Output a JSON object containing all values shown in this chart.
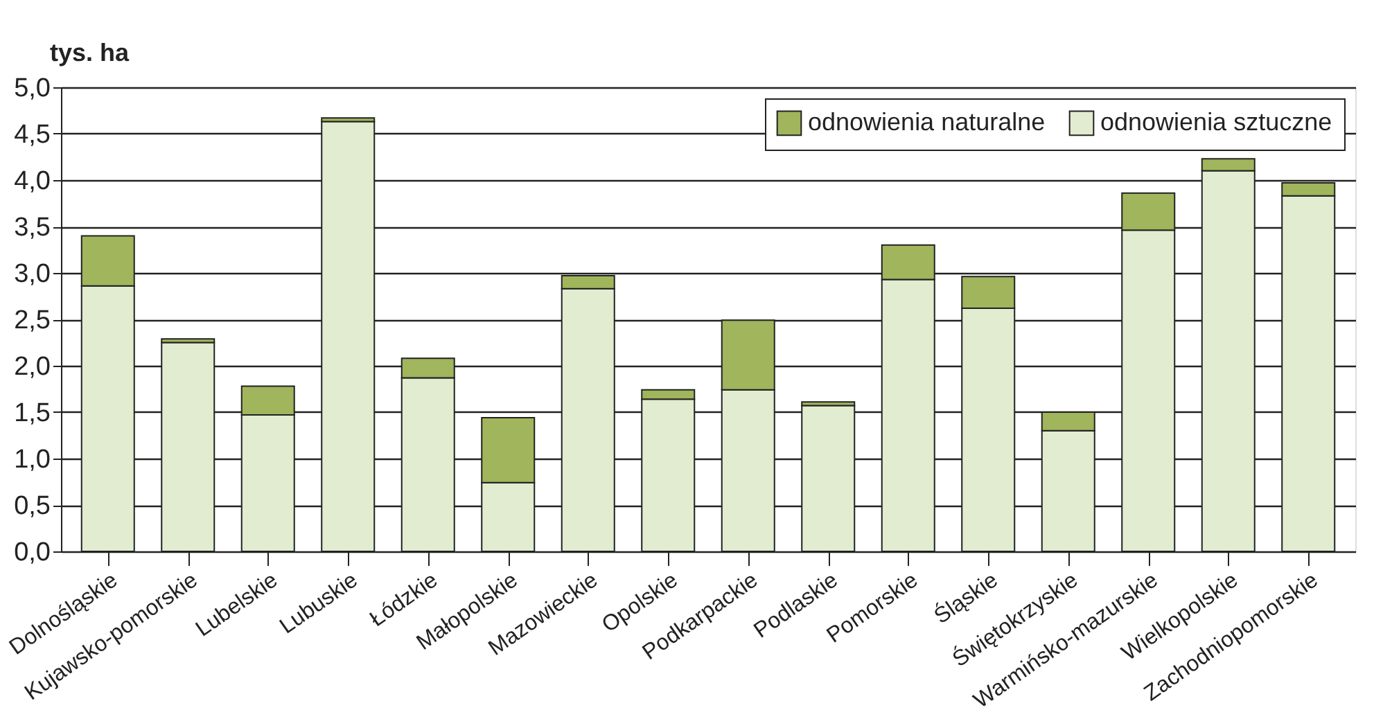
{
  "chart_data": {
    "type": "bar",
    "stacked": true,
    "ylabel": "tys. ha",
    "categories": [
      "Dolnośląskie",
      "Kujawsko-pomorskie",
      "Lubelskie",
      "Lubuskie",
      "Łódzkie",
      "Małopolskie",
      "Mazowieckie",
      "Opolskie",
      "Podkarpackie",
      "Podlaskie",
      "Pomorskie",
      "Śląskie",
      "Świętokrzyskie",
      "Warmińsko-mazurskie",
      "Wielkopolskie",
      "Zachodniopomorskie"
    ],
    "series": [
      {
        "name": "odnowienia sztuczne",
        "color": "#e2ecd0",
        "values": [
          2.86,
          2.25,
          1.47,
          4.63,
          1.87,
          0.74,
          2.83,
          1.64,
          1.74,
          1.57,
          2.93,
          2.62,
          1.3,
          3.46,
          4.1,
          3.83
        ]
      },
      {
        "name": "odnowienia naturalne",
        "color": "#a0b55c",
        "values": [
          0.54,
          0.04,
          0.31,
          0.04,
          0.21,
          0.7,
          0.14,
          0.1,
          0.75,
          0.04,
          0.37,
          0.34,
          0.2,
          0.4,
          0.13,
          0.14
        ]
      }
    ],
    "ylim": [
      0,
      5
    ],
    "yticks": [
      {
        "value": 0,
        "label": "0,0"
      },
      {
        "value": 0.5,
        "label": "0,5"
      },
      {
        "value": 1,
        "label": "1,0"
      },
      {
        "value": 1.5,
        "label": "1,5"
      },
      {
        "value": 2,
        "label": "2,0"
      },
      {
        "value": 2.5,
        "label": "2,5"
      },
      {
        "value": 3,
        "label": "3,0"
      },
      {
        "value": 3.5,
        "label": "3,5"
      },
      {
        "value": 4,
        "label": "4,0"
      },
      {
        "value": 4.5,
        "label": "4,5"
      },
      {
        "value": 5,
        "label": "5,0"
      }
    ],
    "grid": "y",
    "legend": "top right"
  }
}
